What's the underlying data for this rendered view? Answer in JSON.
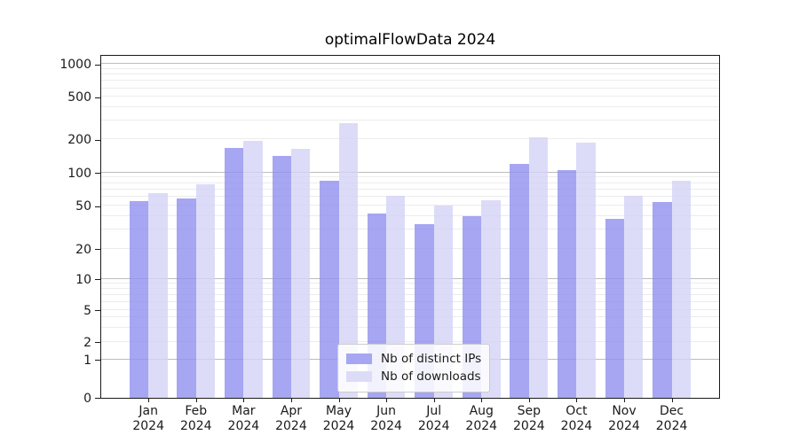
{
  "chart_data": {
    "type": "bar",
    "title": "optimalFlowData 2024",
    "categories": [
      "Jan",
      "Feb",
      "Mar",
      "Apr",
      "May",
      "Jun",
      "Jul",
      "Aug",
      "Sep",
      "Oct",
      "Nov",
      "Dec"
    ],
    "category_year": "2024",
    "series": [
      {
        "name": "Nb of distinct IPs",
        "color": "#a6a6f2",
        "values": [
          55,
          58,
          165,
          140,
          84,
          42,
          34,
          40,
          119,
          105,
          38,
          54
        ]
      },
      {
        "name": "Nb of downloads",
        "color": "#dcdcf8",
        "values": [
          65,
          78,
          192,
          164,
          283,
          61,
          50,
          56,
          208,
          186,
          61,
          84
        ]
      }
    ],
    "y_axis": {
      "scale": "symlog",
      "ticks": [
        0,
        1,
        2,
        5,
        10,
        20,
        50,
        100,
        200,
        500,
        1000
      ]
    },
    "grid": {
      "major": true,
      "minor": true
    },
    "legend_position": "lower center",
    "colors": {
      "major_grid": "#bcbcbc",
      "minor_grid": "#ececec",
      "axis": "#1a1a1a",
      "background": "#ffffff"
    }
  }
}
